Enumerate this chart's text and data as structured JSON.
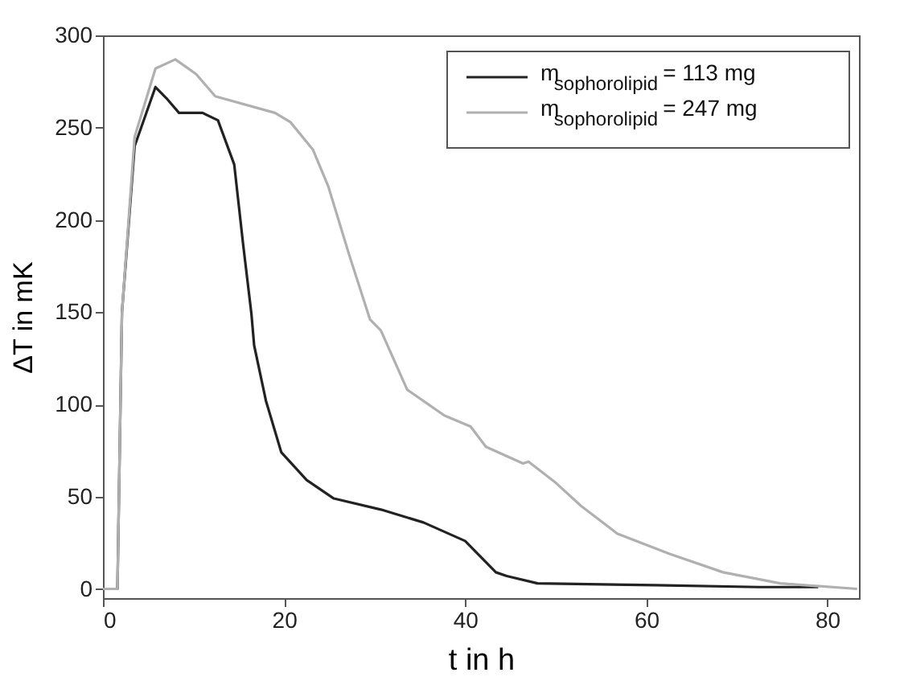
{
  "chart_data": {
    "type": "line",
    "xlabel": "t in h",
    "ylabel": "ΔT in mK",
    "xlim": [
      0,
      83.5
    ],
    "ylim": [
      -5,
      300
    ],
    "xticks": [
      0,
      20,
      40,
      60,
      80
    ],
    "yticks": [
      0,
      50,
      100,
      150,
      200,
      250,
      300
    ],
    "grid": false,
    "legend": "top right",
    "line_style": "solid",
    "marker": "none",
    "series": [
      {
        "name": "m$_{sophorolipid}$ = 113 mg",
        "color": "#222222",
        "x": [
          0,
          1.6,
          2.1,
          3.5,
          5.8,
          7,
          8.4,
          11,
          12.7,
          14.5,
          15.5,
          16.4,
          16.7,
          18,
          19.7,
          22.5,
          25.5,
          30.7,
          35.4,
          40,
          43.4,
          44.6,
          48,
          61,
          72.5,
          79
        ],
        "values": [
          0,
          0,
          150,
          240,
          272,
          266,
          258,
          258,
          254,
          230,
          186,
          149,
          132,
          102,
          74,
          59,
          49,
          43,
          36,
          26,
          9,
          7,
          3,
          2,
          1,
          1
        ]
      },
      {
        "name": "m$_{sophorolipid}$ = 247 mg",
        "color": "#b0b0b0",
        "x": [
          0,
          1.6,
          2.1,
          3.5,
          5.8,
          8,
          10.3,
          12.4,
          19,
          20.7,
          23.2,
          24.9,
          27.2,
          29.5,
          30.7,
          33.6,
          37.7,
          40.6,
          42.3,
          46.4,
          47,
          49.9,
          52.8,
          56.8,
          62.6,
          68.5,
          74.8,
          83.3
        ],
        "values": [
          0,
          0,
          150,
          245,
          282,
          287,
          279,
          267,
          258,
          253,
          238,
          218,
          181,
          146,
          140,
          108,
          94,
          88,
          77,
          68,
          69,
          58,
          45,
          30,
          19,
          9,
          3,
          0
        ]
      }
    ]
  }
}
